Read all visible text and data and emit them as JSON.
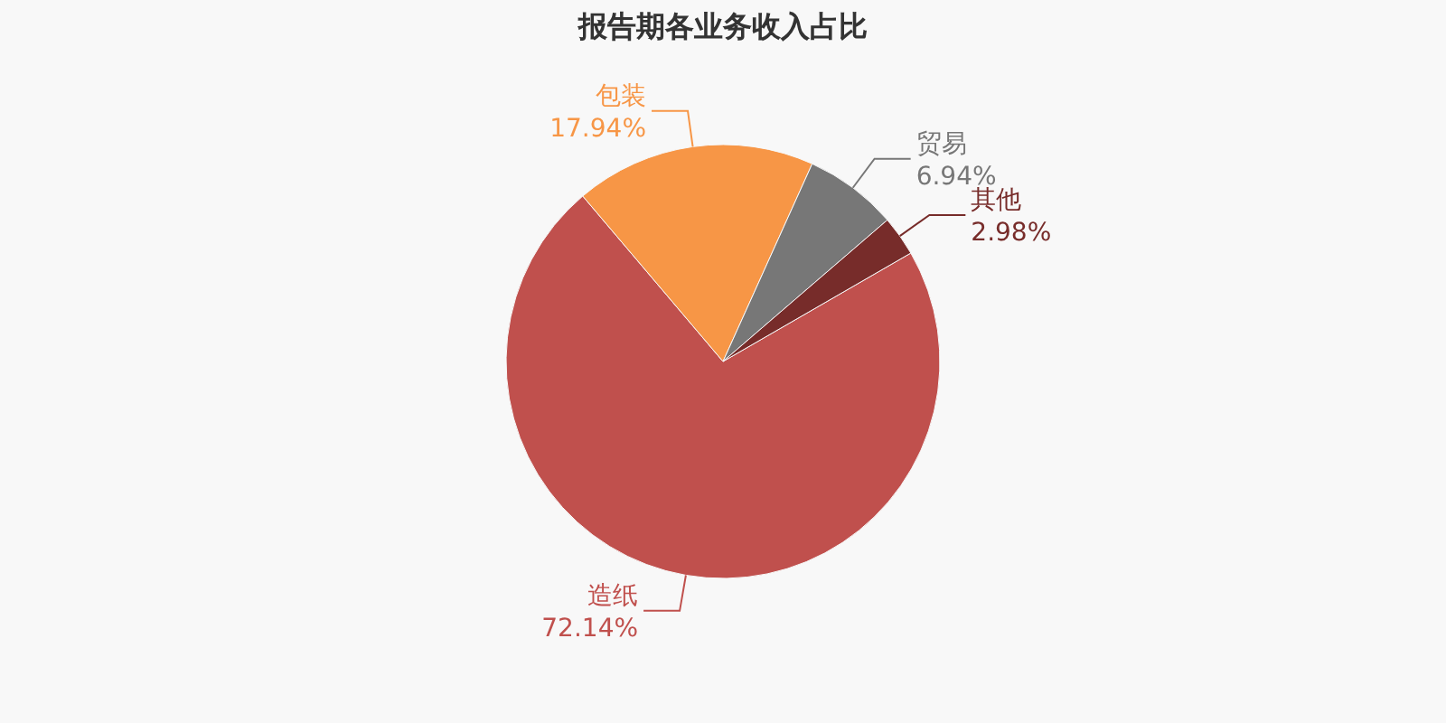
{
  "chart_data": {
    "type": "pie",
    "title": "报告期各业务收入占比",
    "categories": [
      "造纸",
      "包装",
      "贸易",
      "其他"
    ],
    "values": [
      72.14,
      17.94,
      6.94,
      2.98
    ],
    "value_labels": [
      "72.14%",
      "17.94%",
      "6.94%",
      "2.98%"
    ],
    "colors": [
      "#c0504d",
      "#f79646",
      "#777777",
      "#772c2a"
    ]
  }
}
